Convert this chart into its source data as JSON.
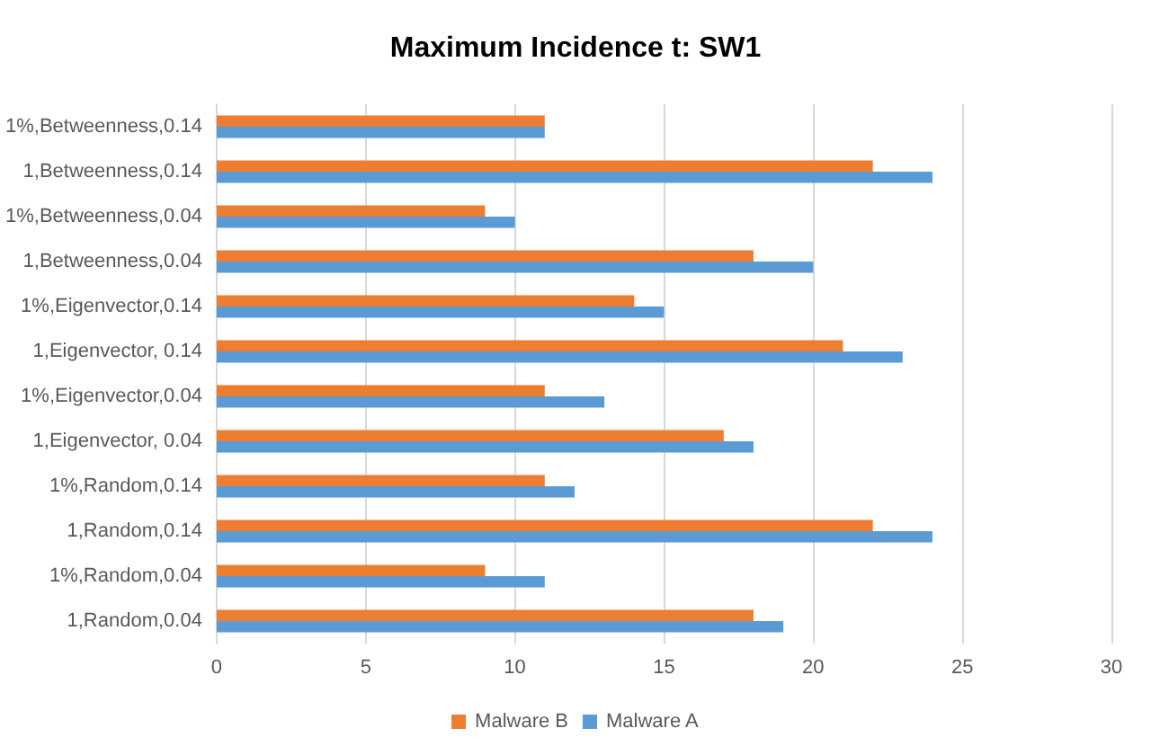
{
  "chart_data": {
    "type": "bar",
    "orientation": "horizontal",
    "title": "Maximum Incidence t: SW1",
    "categories": [
      "1%,Betweenness,0.14",
      "1,Betweenness,0.14",
      "1%,Betweenness,0.04",
      "1,Betweenness,0.04",
      "1%,Eigenvector,0.14",
      "1,Eigenvector, 0.14",
      "1%,Eigenvector,0.04",
      "1,Eigenvector, 0.04",
      "1%,Random,0.14",
      "1,Random,0.14",
      "1%,Random,0.04",
      "1,Random,0.04"
    ],
    "series": [
      {
        "name": "Malware B",
        "color": "#ed7d31",
        "values": [
          11,
          22,
          9,
          18,
          14,
          21,
          11,
          17,
          11,
          22,
          9,
          18
        ]
      },
      {
        "name": "Malware A",
        "color": "#5b9bd5",
        "values": [
          11,
          24,
          10,
          20,
          15,
          23,
          13,
          18,
          12,
          24,
          11,
          19
        ]
      }
    ],
    "xlim": [
      0,
      30
    ],
    "xticks": [
      0,
      5,
      10,
      15,
      20,
      25,
      30
    ],
    "grid": "x",
    "legend": "bottom"
  }
}
